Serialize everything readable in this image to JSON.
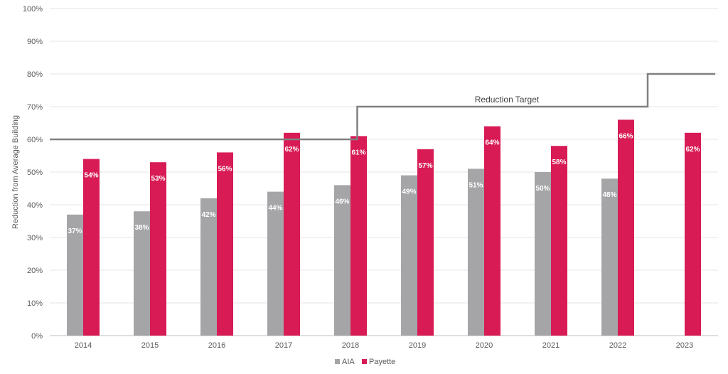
{
  "chart_data": {
    "type": "bar",
    "title": "",
    "xlabel": "",
    "ylabel": "Reduction from Average Building",
    "ylim": [
      0,
      100
    ],
    "yticks": [
      "0%",
      "10%",
      "20%",
      "30%",
      "40%",
      "50%",
      "60%",
      "70%",
      "80%",
      "90%",
      "100%"
    ],
    "grid": true,
    "legend_position": "bottom-center",
    "categories": [
      "2014",
      "2015",
      "2016",
      "2017",
      "2018",
      "2019",
      "2020",
      "2021",
      "2022",
      "2023"
    ],
    "series": [
      {
        "name": "AIA",
        "color": "#a5a5a8",
        "values": [
          37,
          38,
          42,
          44,
          46,
          49,
          51,
          50,
          48,
          null
        ],
        "labels": [
          "37%",
          "38%",
          "42%",
          "44%",
          "46%",
          "49%",
          "51%",
          "50%",
          "48%",
          null
        ]
      },
      {
        "name": "Payette",
        "color": "#d81b55",
        "values": [
          54,
          53,
          56,
          62,
          61,
          57,
          64,
          58,
          66,
          62
        ],
        "labels": [
          "54%",
          "53%",
          "56%",
          "62%",
          "61%",
          "57%",
          "64%",
          "58%",
          "66%",
          "62%"
        ]
      }
    ],
    "target_line": {
      "label": "Reduction Target",
      "color": "#808080",
      "steps": [
        {
          "from": "2014",
          "to": "2018",
          "value": 60
        },
        {
          "from": "2018",
          "to": "2022",
          "value": 70
        },
        {
          "from": "2022",
          "to": "2023",
          "value": 80
        }
      ]
    }
  }
}
